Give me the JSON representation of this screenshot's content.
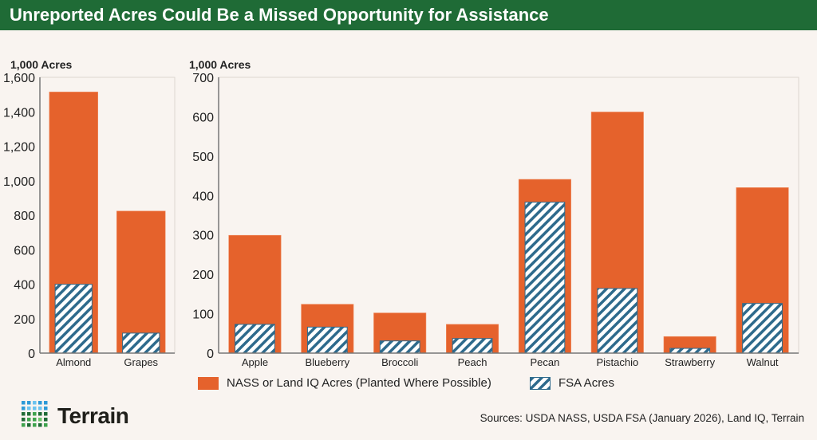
{
  "title": "Unreported Acres Could Be a Missed Opportunity for Assistance",
  "colors": {
    "header": "#1f6b36",
    "nass": "#e5622c",
    "fsa_stripe": "#2e6a8c",
    "background": "#f9f4f0"
  },
  "chart_data": [
    {
      "type": "bar",
      "ylabel": "1,000 Acres",
      "ylim": [
        0,
        1600
      ],
      "yticks": [
        "0",
        "200",
        "400",
        "600",
        "800",
        "1,000",
        "1,200",
        "1,400",
        "1,600"
      ],
      "categories": [
        "Almond",
        "Grapes"
      ],
      "series": [
        {
          "name": "NASS or Land IQ Acres (Planted Where Possible)",
          "values": [
            1515,
            824
          ]
        },
        {
          "name": "FSA Acres",
          "values": [
            399,
            116
          ]
        }
      ]
    },
    {
      "type": "bar",
      "ylabel": "1,000 Acres",
      "ylim": [
        0,
        700
      ],
      "yticks": [
        "0",
        "100",
        "200",
        "300",
        "400",
        "500",
        "600",
        "700"
      ],
      "categories": [
        "Apple",
        "Blueberry",
        "Broccoli",
        "Peach",
        "Pecan",
        "Pistachio",
        "Strawberry",
        "Walnut"
      ],
      "series": [
        {
          "name": "NASS or Land IQ Acres (Planted Where Possible)",
          "values": [
            299,
            124,
            102,
            73,
            441,
            612,
            42,
            420
          ]
        },
        {
          "name": "FSA Acres",
          "values": [
            73,
            66,
            31,
            37,
            383,
            164,
            12,
            126
          ]
        }
      ]
    }
  ],
  "legend": {
    "nass": "NASS or Land IQ Acres (Planted Where Possible)",
    "fsa": "FSA Acres"
  },
  "logo": {
    "name": "Terrain"
  },
  "source": "Sources: USDA NASS, USDA FSA (January 2026), Land IQ, Terrain"
}
